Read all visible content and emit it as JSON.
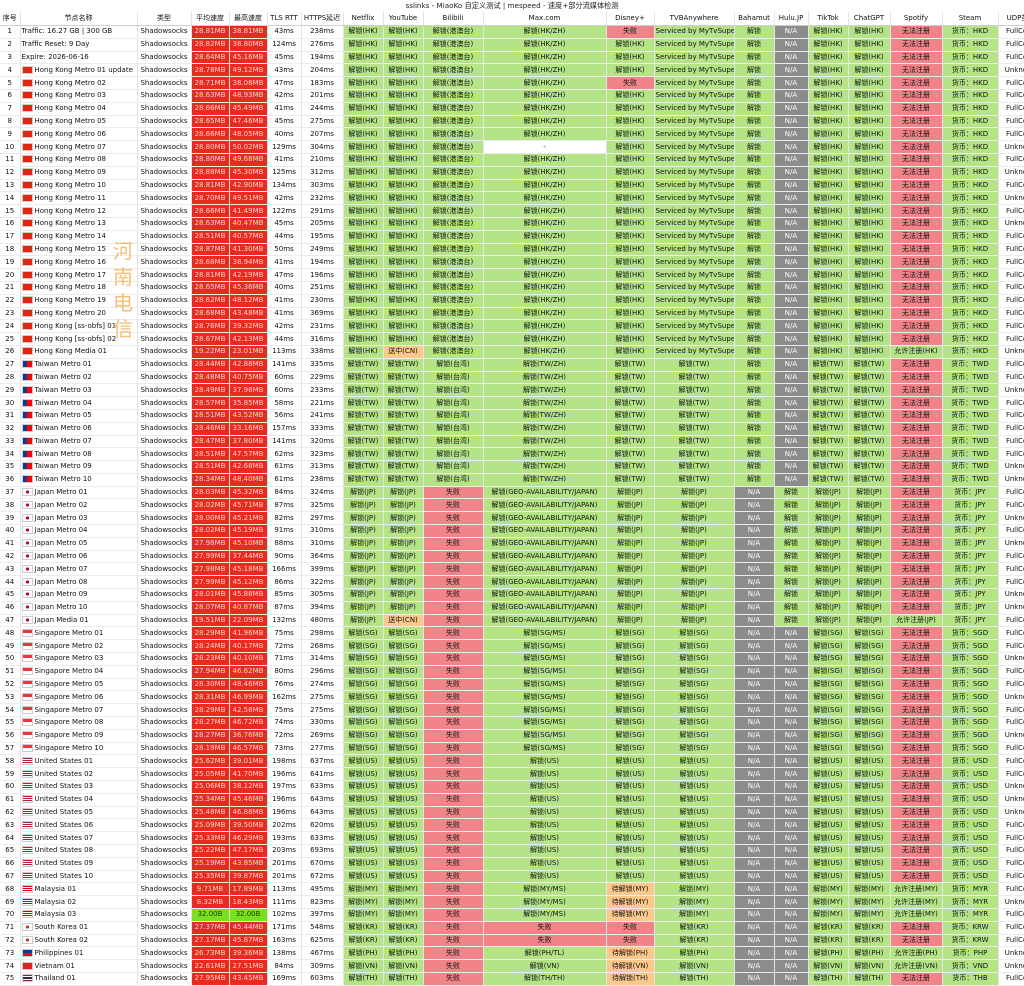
{
  "window_title": "sslinks - MiaoKo 自定义测试 | mespeed - 速度+部分流媒体检测",
  "watermark": "河南电信",
  "colors": {
    "speed_red": "#ea2a1f",
    "speed_green": "#78e01f",
    "ok": "#b4e486",
    "fail": "#f08489",
    "warn": "#fcc98d",
    "na": "#8c8c8c"
  },
  "columns": [
    "序号",
    "节点名称",
    "类型",
    "平均速度",
    "最高速度",
    "TLS RTT",
    "HTTPS延迟",
    "Netflix",
    "YouTube",
    "Bilibili",
    "Max.com",
    "Disney+",
    "TVBAnywhere",
    "Bahamut",
    "Hulu.JP",
    "TikTok",
    "ChatGPT",
    "Spotify",
    "Steam",
    "UDP类型"
  ],
  "groups": [
    {
      "flag": "",
      "rows": [
        {
          "name": "Traffic: 16.27 GB | 300 GB",
          "avg": "28.81MB",
          "max": "38.81MB",
          "tls": "43ms",
          "https": "238ms"
        },
        {
          "name": "Traffic Reset: 9 Day",
          "avg": "28.82MB",
          "max": "38.80MB",
          "tls": "124ms",
          "https": "276ms"
        },
        {
          "name": "Expire: 2026-06-16",
          "avg": "28.64MB",
          "max": "45.16MB",
          "tls": "45ms",
          "https": "194ms"
        }
      ]
    },
    {
      "flag": "hk",
      "rows": [
        {
          "name": "Hong Kong Metro 01 update",
          "avg": "28.78MB",
          "max": "49.12MB",
          "tls": "43ms",
          "https": "204ms"
        },
        {
          "name": "Hong Kong Metro 02",
          "avg": "28.71MB",
          "max": "38.08MB",
          "tls": "47ms",
          "https": "183ms"
        },
        {
          "name": "Hong Kong Metro 03",
          "avg": "28.63MB",
          "max": "48.93MB",
          "tls": "42ms",
          "https": "201ms"
        },
        {
          "name": "Hong Kong Metro 04",
          "avg": "28.66MB",
          "max": "45.49MB",
          "tls": "41ms",
          "https": "244ms"
        },
        {
          "name": "Hong Kong Metro 05",
          "avg": "28.65MB",
          "max": "47.46MB",
          "tls": "45ms",
          "https": "275ms"
        },
        {
          "name": "Hong Kong Metro 06",
          "avg": "28.66MB",
          "max": "48.05MB",
          "tls": "40ms",
          "https": "207ms"
        },
        {
          "name": "Hong Kong Metro 07",
          "avg": "28.80MB",
          "max": "50.02MB",
          "tls": "129ms",
          "https": "304ms"
        },
        {
          "name": "Hong Kong Metro 08",
          "avg": "28.80MB",
          "max": "49.68MB",
          "tls": "41ms",
          "https": "210ms"
        },
        {
          "name": "Hong Kong Metro 09",
          "avg": "28.88MB",
          "max": "45.30MB",
          "tls": "125ms",
          "https": "312ms"
        },
        {
          "name": "Hong Kong Metro 10",
          "avg": "28.81MB",
          "max": "42.90MB",
          "tls": "134ms",
          "https": "303ms"
        },
        {
          "name": "Hong Kong Metro 11",
          "avg": "28.70MB",
          "max": "49.51MB",
          "tls": "42ms",
          "https": "232ms"
        },
        {
          "name": "Hong Kong Metro 12",
          "avg": "28.66MB",
          "max": "41.49MB",
          "tls": "122ms",
          "https": "291ms"
        },
        {
          "name": "Hong Kong Metro 13",
          "avg": "28.63MB",
          "max": "40.47MB",
          "tls": "45ms",
          "https": "205ms"
        },
        {
          "name": "Hong Kong Metro 14",
          "avg": "28.51MB",
          "max": "40.57MB",
          "tls": "44ms",
          "https": "195ms"
        },
        {
          "name": "Hong Kong Metro 15",
          "avg": "28.87MB",
          "max": "41.30MB",
          "tls": "50ms",
          "https": "249ms"
        },
        {
          "name": "Hong Kong Metro 16",
          "avg": "28.68MB",
          "max": "38.94MB",
          "tls": "41ms",
          "https": "194ms"
        },
        {
          "name": "Hong Kong Metro 17",
          "avg": "28.81MB",
          "max": "42.19MB",
          "tls": "47ms",
          "https": "196ms"
        },
        {
          "name": "Hong Kong Metro 18",
          "avg": "28.65MB",
          "max": "45.36MB",
          "tls": "40ms",
          "https": "251ms"
        },
        {
          "name": "Hong Kong Metro 19",
          "avg": "28.62MB",
          "max": "48.12MB",
          "tls": "41ms",
          "https": "230ms"
        },
        {
          "name": "Hong Kong Metro 20",
          "avg": "28.68MB",
          "max": "43.48MB",
          "tls": "41ms",
          "https": "369ms"
        },
        {
          "name": "Hong Kong [ss-obfs] 01",
          "avg": "28.76MB",
          "max": "39.32MB",
          "tls": "42ms",
          "https": "231ms"
        },
        {
          "name": "Hong Kong [ss-obfs] 02",
          "avg": "28.67MB",
          "max": "42.13MB",
          "tls": "44ms",
          "https": "316ms"
        },
        {
          "name": "Hong Kong Media 01",
          "avg": "19.22MB",
          "max": "23.01MB",
          "tls": "113ms",
          "https": "338ms"
        }
      ]
    },
    {
      "flag": "tw",
      "rows": [
        {
          "name": "Taiwan Metro 01",
          "avg": "28.44MB",
          "max": "42.88MB",
          "tls": "141ms",
          "https": "335ms"
        },
        {
          "name": "Taiwan Metro 02",
          "avg": "28.48MB",
          "max": "40.75MB",
          "tls": "60ms",
          "https": "229ms"
        },
        {
          "name": "Taiwan Metro 03",
          "avg": "28.49MB",
          "max": "37.98MB",
          "tls": "60ms",
          "https": "233ms"
        },
        {
          "name": "Taiwan Metro 04",
          "avg": "28.57MB",
          "max": "35.85MB",
          "tls": "58ms",
          "https": "221ms"
        },
        {
          "name": "Taiwan Metro 05",
          "avg": "28.51MB",
          "max": "43.52MB",
          "tls": "56ms",
          "https": "241ms"
        },
        {
          "name": "Taiwan Metro 06",
          "avg": "28.46MB",
          "max": "33.16MB",
          "tls": "157ms",
          "https": "333ms"
        },
        {
          "name": "Taiwan Metro 07",
          "avg": "28.47MB",
          "max": "37.80MB",
          "tls": "141ms",
          "https": "320ms"
        },
        {
          "name": "Taiwan Metro 08",
          "avg": "28.51MB",
          "max": "47.57MB",
          "tls": "62ms",
          "https": "323ms"
        },
        {
          "name": "Taiwan Metro 09",
          "avg": "28.51MB",
          "max": "42.68MB",
          "tls": "61ms",
          "https": "313ms"
        },
        {
          "name": "Taiwan Metro 10",
          "avg": "28.34MB",
          "max": "48.40MB",
          "tls": "61ms",
          "https": "238ms"
        }
      ]
    },
    {
      "flag": "jp",
      "rows": [
        {
          "name": "Japan Metro 01",
          "avg": "28.03MB",
          "max": "45.32MB",
          "tls": "84ms",
          "https": "324ms"
        },
        {
          "name": "Japan Metro 02",
          "avg": "28.02MB",
          "max": "45.71MB",
          "tls": "87ms",
          "https": "325ms"
        },
        {
          "name": "Japan Metro 03",
          "avg": "28.00MB",
          "max": "45.21MB",
          "tls": "82ms",
          "https": "297ms"
        },
        {
          "name": "Japan Metro 04",
          "avg": "28.02MB",
          "max": "45.19MB",
          "tls": "91ms",
          "https": "310ms"
        },
        {
          "name": "Japan Metro 05",
          "avg": "27.98MB",
          "max": "45.10MB",
          "tls": "88ms",
          "https": "310ms"
        },
        {
          "name": "Japan Metro 06",
          "avg": "27.99MB",
          "max": "37.44MB",
          "tls": "90ms",
          "https": "364ms"
        },
        {
          "name": "Japan Metro 07",
          "avg": "27.98MB",
          "max": "45.18MB",
          "tls": "166ms",
          "https": "399ms"
        },
        {
          "name": "Japan Metro 08",
          "avg": "27.99MB",
          "max": "45.12MB",
          "tls": "86ms",
          "https": "322ms"
        },
        {
          "name": "Japan Metro 09",
          "avg": "28.01MB",
          "max": "45.88MB",
          "tls": "85ms",
          "https": "305ms"
        },
        {
          "name": "Japan Metro 10",
          "avg": "28.07MB",
          "max": "40.87MB",
          "tls": "87ms",
          "https": "394ms"
        },
        {
          "name": "Japan Media 01",
          "avg": "19.51MB",
          "max": "22.09MB",
          "tls": "132ms",
          "https": "480ms"
        }
      ]
    },
    {
      "flag": "sg",
      "rows": [
        {
          "name": "Singapore Metro 01",
          "avg": "28.29MB",
          "max": "41.96MB",
          "tls": "75ms",
          "https": "298ms"
        },
        {
          "name": "Singapore Metro 02",
          "avg": "28.24MB",
          "max": "40.17MB",
          "tls": "72ms",
          "https": "268ms"
        },
        {
          "name": "Singapore Metro 03",
          "avg": "28.23MB",
          "max": "40.10MB",
          "tls": "71ms",
          "https": "314ms"
        },
        {
          "name": "Singapore Metro 04",
          "avg": "27.94MB",
          "max": "46.62MB",
          "tls": "80ms",
          "https": "296ms"
        },
        {
          "name": "Singapore Metro 05",
          "avg": "28.30MB",
          "max": "48.46MB",
          "tls": "76ms",
          "https": "274ms"
        },
        {
          "name": "Singapore Metro 06",
          "avg": "28.31MB",
          "max": "46.99MB",
          "tls": "162ms",
          "https": "275ms"
        },
        {
          "name": "Singapore Metro 07",
          "avg": "28.29MB",
          "max": "42.58MB",
          "tls": "75ms",
          "https": "275ms"
        },
        {
          "name": "Singapore Metro 08",
          "avg": "28.27MB",
          "max": "46.72MB",
          "tls": "74ms",
          "https": "330ms"
        },
        {
          "name": "Singapore Metro 09",
          "avg": "28.27MB",
          "max": "36.76MB",
          "tls": "72ms",
          "https": "269ms"
        },
        {
          "name": "Singapore Metro 10",
          "avg": "28.19MB",
          "max": "46.57MB",
          "tls": "73ms",
          "https": "277ms"
        }
      ]
    },
    {
      "flag": "us",
      "rows": [
        {
          "name": "United States 01",
          "avg": "25.62MB",
          "max": "39.01MB",
          "tls": "198ms",
          "https": "637ms"
        },
        {
          "name": "United States 02",
          "avg": "25.05MB",
          "max": "41.70MB",
          "tls": "196ms",
          "https": "641ms"
        },
        {
          "name": "United States 03",
          "avg": "25.06MB",
          "max": "38.12MB",
          "tls": "197ms",
          "https": "633ms"
        },
        {
          "name": "United States 04",
          "avg": "25.34MB",
          "max": "45.46MB",
          "tls": "196ms",
          "https": "643ms"
        },
        {
          "name": "United States 05",
          "avg": "25.48MB",
          "max": "46.88MB",
          "tls": "196ms",
          "https": "643ms"
        },
        {
          "name": "United States 06",
          "avg": "25.09MB",
          "max": "39.50MB",
          "tls": "202ms",
          "https": "620ms"
        },
        {
          "name": "United States 07",
          "avg": "25.33MB",
          "max": "46.29MB",
          "tls": "193ms",
          "https": "633ms"
        },
        {
          "name": "United States 08",
          "avg": "25.22MB",
          "max": "47.17MB",
          "tls": "203ms",
          "https": "693ms"
        },
        {
          "name": "United States 09",
          "avg": "25.19MB",
          "max": "43.85MB",
          "tls": "201ms",
          "https": "670ms"
        },
        {
          "name": "United States 10",
          "avg": "25.35MB",
          "max": "39.87MB",
          "tls": "201ms",
          "https": "672ms"
        }
      ]
    },
    {
      "flag": "my",
      "rows": [
        {
          "name": "Malaysia 01",
          "avg": "9.71MB",
          "max": "17.89MB",
          "tls": "113ms",
          "https": "495ms"
        },
        {
          "name": "Malaysia 02",
          "avg": "8.32MB",
          "max": "18.43MB",
          "tls": "111ms",
          "https": "823ms"
        },
        {
          "name": "Malaysia 03",
          "avg": "32.00B",
          "max": "32.00B",
          "tls": "102ms",
          "https": "397ms"
        }
      ]
    },
    {
      "flag": "kr",
      "rows": [
        {
          "name": "South Korea 01",
          "avg": "27.37MB",
          "max": "45.44MB",
          "tls": "171ms",
          "https": "548ms"
        },
        {
          "name": "South Korea 02",
          "avg": "27.17MB",
          "max": "45.87MB",
          "tls": "163ms",
          "https": "625ms"
        }
      ]
    },
    {
      "flag": "ph",
      "rows": [
        {
          "name": "Philippines 01",
          "avg": "26.73MB",
          "max": "39.36MB",
          "tls": "138ms",
          "https": "467ms"
        }
      ]
    },
    {
      "flag": "vn",
      "rows": [
        {
          "name": "Vietnam 01",
          "avg": "22.61MB",
          "max": "27.51MB",
          "tls": "84ms",
          "https": "309ms"
        }
      ]
    },
    {
      "flag": "th",
      "rows": [
        {
          "name": "Thailand 01",
          "avg": "27.95MB",
          "max": "43.45MB",
          "tls": "169ms",
          "https": "603ms"
        }
      ]
    }
  ],
  "type_value": "Shadowsocks",
  "media": {
    "hk": {
      "netflix": "解锁(HK)",
      "youtube": "解锁(HK)",
      "bilibili": "解锁(港澳台)",
      "max": "解锁(HK/ZH)",
      "disney": "解锁(HK)",
      "tvb": "Serviced by MyTvSuper",
      "bahamut": "解锁",
      "hulu": "N/A",
      "tiktok": "解锁(HK)",
      "chatgpt": "解锁(HK)",
      "spotify": "无法注册",
      "steam": "货币：HKD"
    },
    "tw": {
      "netflix": "解锁(TW)",
      "youtube": "解锁(TW)",
      "bilibili": "解锁(台湾)",
      "max": "解锁(TW/ZH)",
      "disney": "解锁(TW)",
      "tvb": "解锁(TW)",
      "bahamut": "解锁",
      "hulu": "N/A",
      "tiktok": "解锁(TW)",
      "chatgpt": "解锁(TW)",
      "spotify": "无法注册",
      "steam": "货币：TWD"
    },
    "jp": {
      "netflix": "解锁(JP)",
      "youtube": "解锁(JP)",
      "bilibili": "失败",
      "max": "解锁(GEO-AVAILABILITY/JAPAN)",
      "disney": "解锁(JP)",
      "tvb": "解锁(JP)",
      "bahamut": "N/A",
      "hulu": "解锁",
      "tiktok": "解锁(JP)",
      "chatgpt": "解锁(JP)",
      "spotify": "无法注册",
      "steam": "货币：JPY"
    },
    "sg": {
      "netflix": "解锁(SG)",
      "youtube": "解锁(SG)",
      "bilibili": "失败",
      "max": "解锁(SG/MS)",
      "disney": "解锁(SG)",
      "tvb": "解锁(SG)",
      "bahamut": "N/A",
      "hulu": "N/A",
      "tiktok": "解锁(SG)",
      "chatgpt": "解锁(SG)",
      "spotify": "无法注册",
      "steam": "货币：SGD"
    },
    "us": {
      "netflix": "解锁(US)",
      "youtube": "解锁(US)",
      "bilibili": "失败",
      "max": "解锁(US)",
      "disney": "解锁(US)",
      "tvb": "解锁(US)",
      "bahamut": "N/A",
      "hulu": "N/A",
      "tiktok": "解锁(US)",
      "chatgpt": "解锁(US)",
      "spotify": "无法注册",
      "steam": "货币：USD"
    },
    "my": {
      "netflix": "解锁(MY)",
      "youtube": "解锁(MY)",
      "bilibili": "失败",
      "max": "解锁(MY/MS)",
      "disney": "待解锁(MY)",
      "tvb": "解锁(MY)",
      "bahamut": "N/A",
      "hulu": "N/A",
      "tiktok": "解锁(MY)",
      "chatgpt": "解锁(MY)",
      "spotify": "允许注册(MY)",
      "steam": "货币：MYR"
    },
    "kr": {
      "netflix": "解锁(KR)",
      "youtube": "解锁(KR)",
      "bilibili": "失败",
      "max": "失败",
      "disney": "失败",
      "tvb": "解锁(KR)",
      "bahamut": "N/A",
      "hulu": "N/A",
      "tiktok": "解锁(KR)",
      "chatgpt": "解锁(KR)",
      "spotify": "无法注册",
      "steam": "货币：KRW"
    },
    "ph": {
      "netflix": "解锁(PH)",
      "youtube": "解锁(PH)",
      "bilibili": "失败",
      "max": "解锁(PH/TL)",
      "disney": "待解锁(PH)",
      "tvb": "解锁(PH)",
      "bahamut": "N/A",
      "hulu": "N/A",
      "tiktok": "解锁(PH)",
      "chatgpt": "解锁(PH)",
      "spotify": "允许注册(PH)",
      "steam": "货币：PHP"
    },
    "vn": {
      "netflix": "解锁(VN)",
      "youtube": "解锁(VN)",
      "bilibili": "失败",
      "max": "解锁(VN)",
      "disney": "待解锁(VN)",
      "tvb": "解锁(VN)",
      "bahamut": "N/A",
      "hulu": "N/A",
      "tiktok": "解锁(VN)",
      "chatgpt": "解锁(VN)",
      "spotify": "允许注册(VN)",
      "steam": "货币：VND"
    },
    "th": {
      "netflix": "解锁(TH)",
      "youtube": "解锁(TH)",
      "bilibili": "失败",
      "max": "解锁(TH/TH)",
      "disney": "待解锁(TH)",
      "tvb": "解锁(TH)",
      "bahamut": "N/A",
      "hulu": "N/A",
      "tiktok": "解锁(TH)",
      "chatgpt": "解锁(TH)",
      "spotify": "无法注册",
      "steam": "货币：THB"
    }
  },
  "overrides": {
    "5": {
      "disney": "失败"
    },
    "1": {
      "disney": "失败"
    },
    "10": {
      "max": "-"
    },
    "26": {
      "youtube": "送中(CN)",
      "spotify": "允许注册(HK)"
    },
    "36": {
      "chatgpt": "解锁(TW)"
    },
    "47": {
      "youtube": "送中(CN)",
      "spotify": "允许注册(JP)"
    },
    "70": {
      "hulu": "N/A"
    }
  },
  "udp": {
    "default": "FullCone",
    "unknown": [
      4,
      10,
      12,
      14,
      16,
      26,
      29,
      35,
      36,
      39,
      41,
      45,
      46,
      50,
      53,
      56,
      60,
      61,
      62,
      69,
      73,
      74
    ],
    "label_unknown": "Unknown"
  }
}
